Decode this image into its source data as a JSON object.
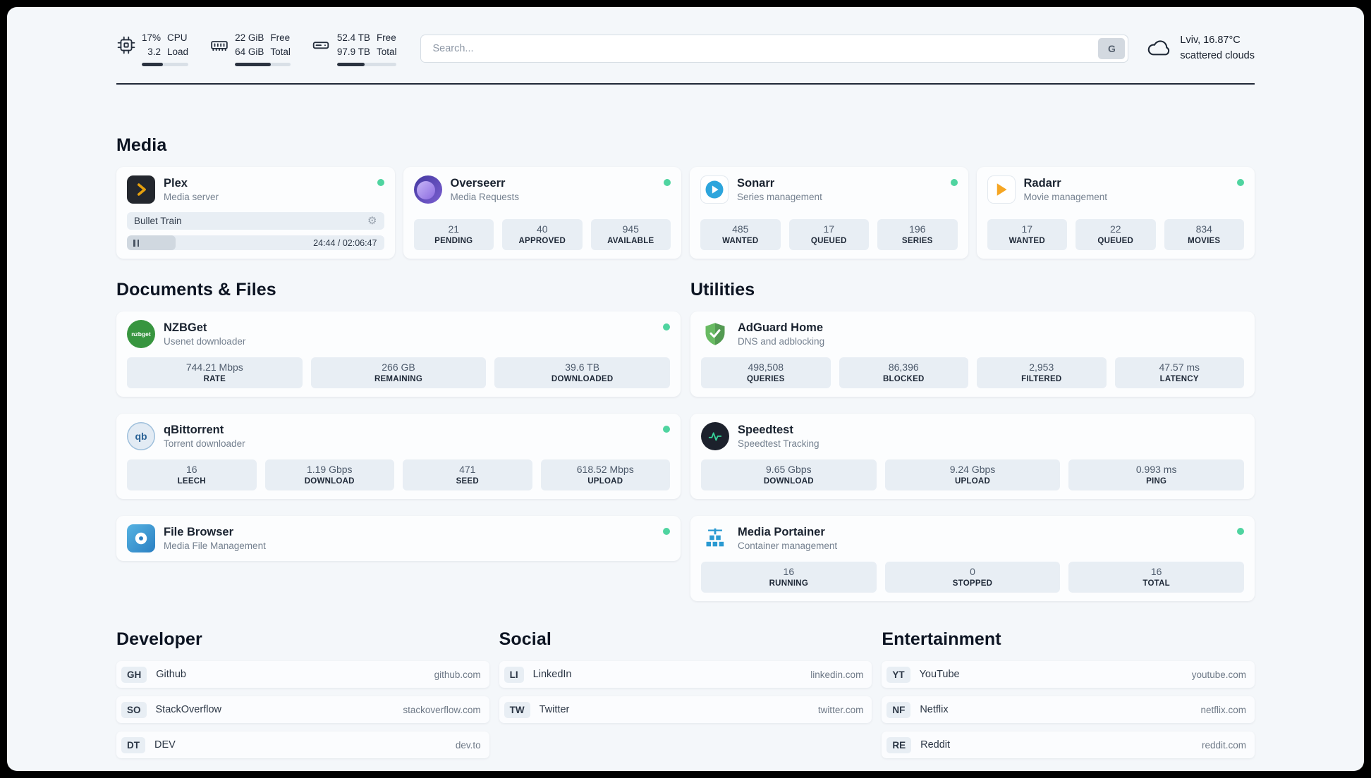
{
  "colors": {
    "status_online": "#4fd4a0",
    "plex_yellow": "#e5a00d",
    "sonarr_blue": "#2da5dc",
    "radarr_yellow": "#f6a623",
    "nzbget_green": "#37953f",
    "speedtest_green": "#36d399",
    "portainer_blue": "#2a9ad2"
  },
  "header": {
    "cpu": {
      "value": "17%",
      "load": "3.2",
      "label_top": "CPU",
      "label_bottom": "Load",
      "progress": 45
    },
    "ram": {
      "free": "22 GiB",
      "total": "64 GiB",
      "label_top": "Free",
      "label_bottom": "Total",
      "progress": 65
    },
    "disk": {
      "free": "52.4 TB",
      "total": "97.9 TB",
      "label_top": "Free",
      "label_bottom": "Total",
      "progress": 46
    },
    "search": {
      "placeholder": "Search...",
      "button_label": "G"
    },
    "weather": {
      "location": "Lviv, 16.87°C",
      "condition": "scattered clouds"
    }
  },
  "sections": {
    "media": {
      "title": "Media",
      "plex": {
        "name": "Plex",
        "subtitle": "Media server",
        "now_playing": "Bullet Train",
        "time": "24:44 / 02:06:47",
        "progress": 19
      },
      "overseerr": {
        "name": "Overseerr",
        "subtitle": "Media Requests",
        "stats": [
          {
            "value": "21",
            "label": "PENDING"
          },
          {
            "value": "40",
            "label": "APPROVED"
          },
          {
            "value": "945",
            "label": "AVAILABLE"
          }
        ]
      },
      "sonarr": {
        "name": "Sonarr",
        "subtitle": "Series management",
        "stats": [
          {
            "value": "485",
            "label": "WANTED"
          },
          {
            "value": "17",
            "label": "QUEUED"
          },
          {
            "value": "196",
            "label": "SERIES"
          }
        ]
      },
      "radarr": {
        "name": "Radarr",
        "subtitle": "Movie management",
        "stats": [
          {
            "value": "17",
            "label": "WANTED"
          },
          {
            "value": "22",
            "label": "QUEUED"
          },
          {
            "value": "834",
            "label": "MOVIES"
          }
        ]
      }
    },
    "documents": {
      "title": "Documents & Files",
      "nzbget": {
        "name": "NZBGet",
        "subtitle": "Usenet downloader",
        "icon_text": "nzbget",
        "stats": [
          {
            "value": "744.21 Mbps",
            "label": "RATE"
          },
          {
            "value": "266 GB",
            "label": "REMAINING"
          },
          {
            "value": "39.6 TB",
            "label": "DOWNLOADED"
          }
        ]
      },
      "qbittorrent": {
        "name": "qBittorrent",
        "subtitle": "Torrent downloader",
        "icon_text": "qb",
        "stats": [
          {
            "value": "16",
            "label": "LEECH"
          },
          {
            "value": "1.19 Gbps",
            "label": "DOWNLOAD"
          },
          {
            "value": "471",
            "label": "SEED"
          },
          {
            "value": "618.52 Mbps",
            "label": "UPLOAD"
          }
        ]
      },
      "filebrowser": {
        "name": "File Browser",
        "subtitle": "Media File Management"
      }
    },
    "utilities": {
      "title": "Utilities",
      "adguard": {
        "name": "AdGuard Home",
        "subtitle": "DNS and adblocking",
        "stats": [
          {
            "value": "498,508",
            "label": "QUERIES"
          },
          {
            "value": "86,396",
            "label": "BLOCKED"
          },
          {
            "value": "2,953",
            "label": "FILTERED"
          },
          {
            "value": "47.57 ms",
            "label": "LATENCY"
          }
        ]
      },
      "speedtest": {
        "name": "Speedtest",
        "subtitle": "Speedtest Tracking",
        "stats": [
          {
            "value": "9.65 Gbps",
            "label": "DOWNLOAD"
          },
          {
            "value": "9.24 Gbps",
            "label": "UPLOAD"
          },
          {
            "value": "0.993 ms",
            "label": "PING"
          }
        ]
      },
      "portainer": {
        "name": "Media Portainer",
        "subtitle": "Container management",
        "stats": [
          {
            "value": "16",
            "label": "RUNNING"
          },
          {
            "value": "0",
            "label": "STOPPED"
          },
          {
            "value": "16",
            "label": "TOTAL"
          }
        ]
      }
    },
    "developer": {
      "title": "Developer",
      "links": [
        {
          "abbr": "GH",
          "name": "Github",
          "url": "github.com"
        },
        {
          "abbr": "SO",
          "name": "StackOverflow",
          "url": "stackoverflow.com"
        },
        {
          "abbr": "DT",
          "name": "DEV",
          "url": "dev.to"
        }
      ]
    },
    "social": {
      "title": "Social",
      "links": [
        {
          "abbr": "LI",
          "name": "LinkedIn",
          "url": "linkedin.com"
        },
        {
          "abbr": "TW",
          "name": "Twitter",
          "url": "twitter.com"
        }
      ]
    },
    "entertainment": {
      "title": "Entertainment",
      "links": [
        {
          "abbr": "YT",
          "name": "YouTube",
          "url": "youtube.com"
        },
        {
          "abbr": "NF",
          "name": "Netflix",
          "url": "netflix.com"
        },
        {
          "abbr": "RE",
          "name": "Reddit",
          "url": "reddit.com"
        }
      ]
    }
  }
}
